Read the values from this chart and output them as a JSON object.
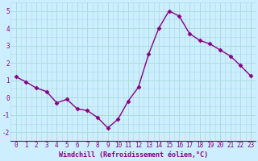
{
  "x": [
    0,
    1,
    2,
    3,
    4,
    5,
    6,
    7,
    8,
    9,
    10,
    11,
    12,
    13,
    14,
    15,
    16,
    17,
    18,
    19,
    20,
    21,
    22,
    23
  ],
  "y": [
    1.2,
    0.9,
    0.55,
    0.35,
    -0.3,
    -0.1,
    -0.65,
    -0.75,
    -1.15,
    -1.75,
    -1.25,
    -0.2,
    0.6,
    2.5,
    4.0,
    5.0,
    4.7,
    3.7,
    3.3,
    3.1,
    2.75,
    2.4,
    1.85,
    1.25
  ],
  "line_color": "#880088",
  "marker": "D",
  "marker_size": 2.5,
  "linewidth": 1.0,
  "xlabel": "Windchill (Refroidissement éolien,°C)",
  "xlabel_fontsize": 6.0,
  "xlabel_color": "#880088",
  "bg_color": "#cceeff",
  "grid_color": "#aadddd",
  "tick_color": "#880088",
  "tick_fontsize": 5.5,
  "ylim": [
    -2.5,
    5.5
  ],
  "yticks": [
    -2,
    -1,
    0,
    1,
    2,
    3,
    4,
    5
  ],
  "xlim": [
    -0.5,
    23.5
  ]
}
